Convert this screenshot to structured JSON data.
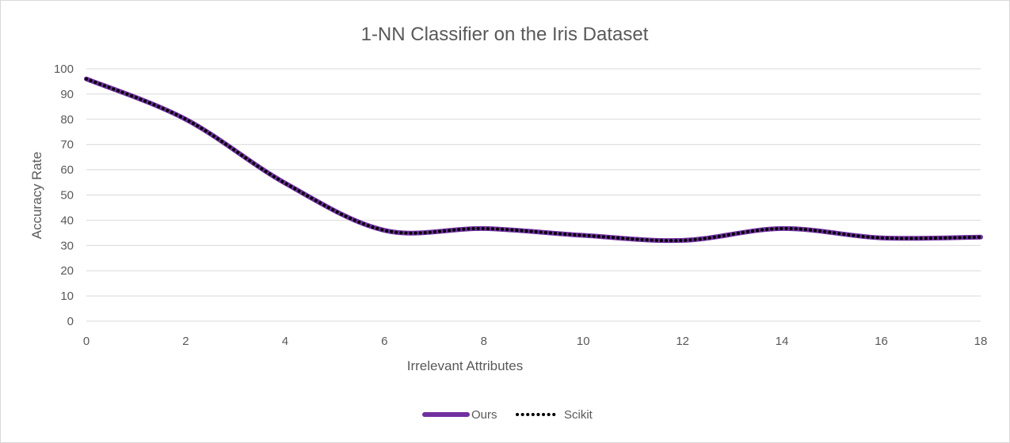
{
  "chart_data": {
    "type": "line",
    "title": "1-NN Classifier on the Iris Dataset",
    "xlabel": "Irrelevant Attributes",
    "ylabel": "Accuracy Rate",
    "xlim": [
      0,
      18
    ],
    "ylim": [
      0,
      100
    ],
    "x_ticks": [
      "0",
      "2",
      "4",
      "6",
      "8",
      "10",
      "12",
      "14",
      "16",
      "18"
    ],
    "y_ticks": [
      "0",
      "10",
      "20",
      "30",
      "40",
      "50",
      "60",
      "70",
      "80",
      "90",
      "100"
    ],
    "grid": "horizontal",
    "legend_position": "bottom",
    "smooth": true,
    "x": [
      0,
      2,
      4,
      6,
      8,
      10,
      12,
      14,
      16,
      18
    ],
    "series": [
      {
        "name": "Ours",
        "color": "#7030a0",
        "style": "solid",
        "values": [
          96,
          80,
          54.7,
          36,
          36.7,
          34,
          32,
          36.7,
          33,
          33.3
        ]
      },
      {
        "name": "Scikit",
        "color": "#000000",
        "style": "dotted",
        "values": [
          96,
          80,
          54.7,
          36,
          36.7,
          34,
          32,
          36.7,
          33,
          33.3
        ]
      }
    ]
  }
}
